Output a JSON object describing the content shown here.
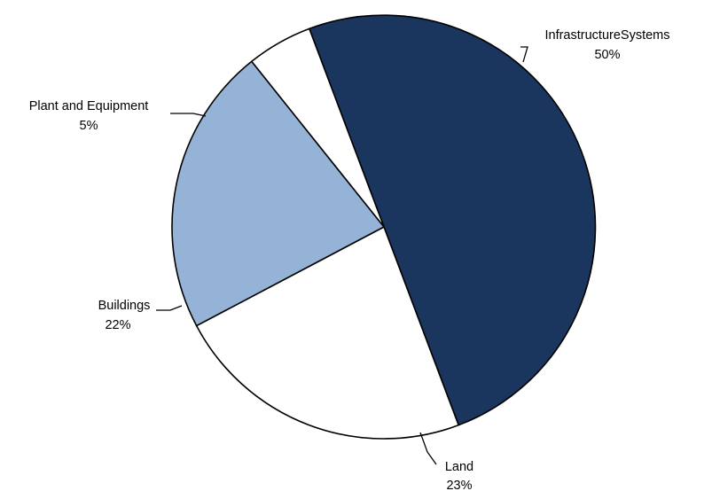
{
  "chart_data": {
    "type": "pie",
    "title": "",
    "start": "Infrastructure Systems at 12 o'clock, clockwise",
    "slices": [
      {
        "label": "InfrastructureSystems",
        "pct_label": "50%",
        "value": 50,
        "color": "#1a365f"
      },
      {
        "label": "Land",
        "pct_label": "23%",
        "value": 23,
        "color": "#ffffff"
      },
      {
        "label": "Buildings",
        "pct_label": "22%",
        "value": 22,
        "color": "#95b3d7"
      },
      {
        "label": "Plant and Equipment",
        "pct_label": "5%",
        "value": 5,
        "color": "#ffffff"
      }
    ],
    "legend": "none; data labels with leader lines"
  }
}
